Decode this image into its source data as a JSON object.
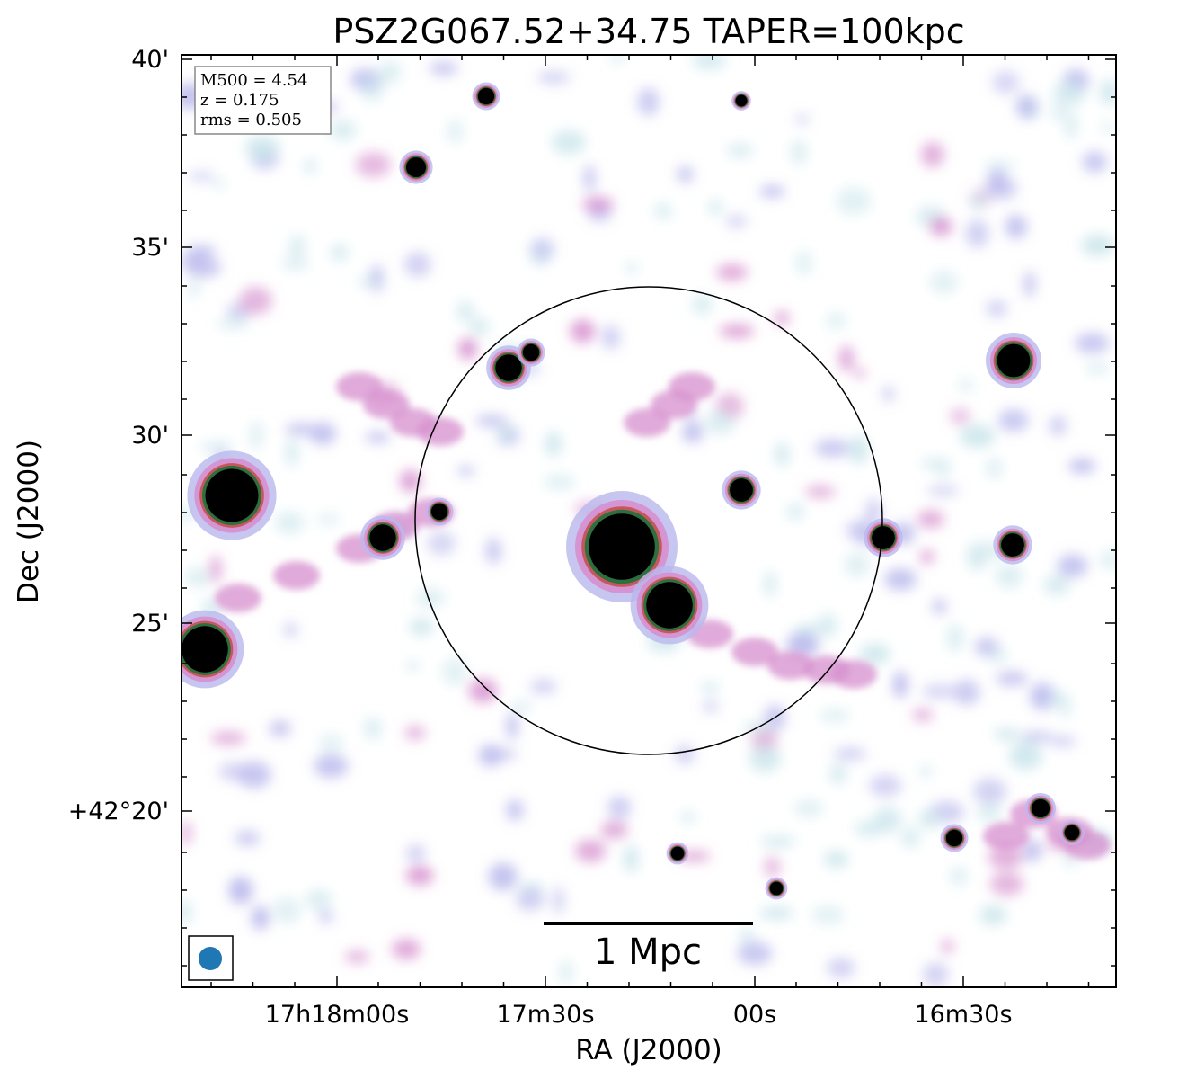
{
  "title": "PSZ2G067.52+34.75 TAPER=100kpc",
  "axes": {
    "xlabel": "RA (J2000)",
    "ylabel": "Dec (J2000)",
    "x_ticks": [
      "17h18m00s",
      "17m30s",
      "00s",
      "16m30s"
    ],
    "y_ticks": [
      "40'",
      "35'",
      "30'",
      "25'",
      "+42°20'"
    ]
  },
  "info_box": {
    "lines": [
      "M500 = 4.54",
      "z = 0.175",
      "rms = 0.505"
    ]
  },
  "scale_bar": {
    "label": "1 Mpc"
  },
  "beam": {
    "color": "#1f77b4"
  },
  "colormap": {
    "faint": "#cce6ec",
    "low": "#b9b8ec",
    "mid": "#d68fce",
    "high": "#c4585a",
    "higher": "#2e6e3f",
    "peak": "#000000"
  },
  "aperture_circle": {
    "color": "#000000"
  }
}
